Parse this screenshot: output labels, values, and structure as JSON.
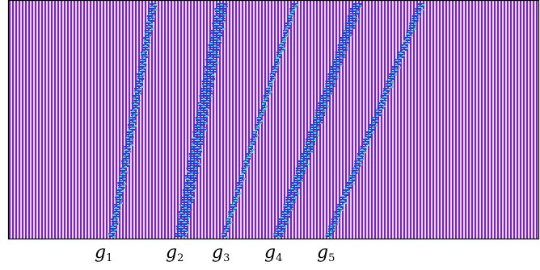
{
  "colors": {
    "background": "#ffffff",
    "stripe_violet": "#7a22c8",
    "stripe_light": "#e9d6f7",
    "glider_blue": "#1f3fd8",
    "glider_cyan": "#4fd6c9",
    "frame": "#000000"
  },
  "gliders": [
    {
      "letter": "g",
      "index": "1"
    },
    {
      "letter": "g",
      "index": "2"
    },
    {
      "letter": "g",
      "index": "3"
    },
    {
      "letter": "g",
      "index": "4"
    },
    {
      "letter": "g",
      "index": "5"
    }
  ]
}
